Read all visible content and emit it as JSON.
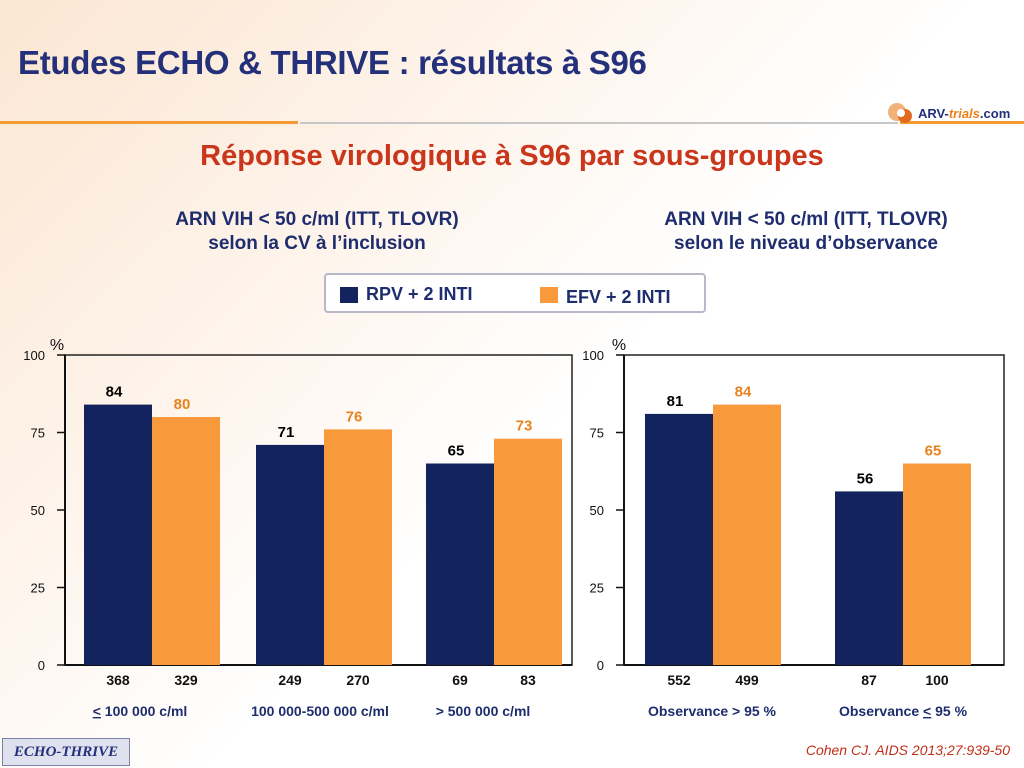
{
  "slide": {
    "title": "Etudes ECHO & THRIVE : résultats à S96",
    "subtitle": "Réponse virologique à S96 par sous-groupes",
    "logo": "ARV-trials.com",
    "logo_parts": [
      "ARV-",
      "trials",
      ".com"
    ],
    "footer_label": "ECHO-THRIVE",
    "citation": "Cohen CJ. AIDS 2013;27:939-50"
  },
  "legend": [
    {
      "label": "RPV + 2 INTI",
      "color": "#13235e"
    },
    {
      "label": "EFV + 2 INTI",
      "color": "#f8993c"
    }
  ],
  "colors": {
    "rpv": "#13235e",
    "efv": "#f8993c",
    "rpv_label": "#000000",
    "efv_label": "#e8821e"
  },
  "chart_data": [
    {
      "type": "bar",
      "heading": [
        "ARN VIH < 50 c/ml (ITT, TLOVR)",
        "selon la CV à l’inclusion"
      ],
      "ylabel": "%",
      "ylim": [
        0,
        100
      ],
      "yticks": [
        0,
        25,
        50,
        75,
        100
      ],
      "categories": [
        "< 100 000 c/ml",
        "100 000-500 000 c/ml",
        "> 500 000 c/ml"
      ],
      "series": [
        {
          "name": "RPV + 2 INTI",
          "values": [
            84,
            71,
            65
          ],
          "n": [
            "368",
            "249",
            "69"
          ]
        },
        {
          "name": "EFV + 2 INTI",
          "values": [
            80,
            76,
            73
          ],
          "n": [
            "329",
            "270",
            "83"
          ]
        }
      ]
    },
    {
      "type": "bar",
      "heading": [
        "ARN VIH < 50 c/ml (ITT, TLOVR)",
        "selon le niveau d’observance"
      ],
      "ylabel": "%",
      "ylim": [
        0,
        100
      ],
      "yticks": [
        0,
        25,
        50,
        75,
        100
      ],
      "categories": [
        "Observance > 95 %",
        "Observance < 95 %"
      ],
      "series": [
        {
          "name": "RPV + 2 INTI",
          "values": [
            81,
            56
          ],
          "n": [
            "552",
            "87"
          ]
        },
        {
          "name": "EFV + 2 INTI",
          "values": [
            84,
            65
          ],
          "n": [
            "499",
            "100"
          ]
        }
      ]
    }
  ]
}
